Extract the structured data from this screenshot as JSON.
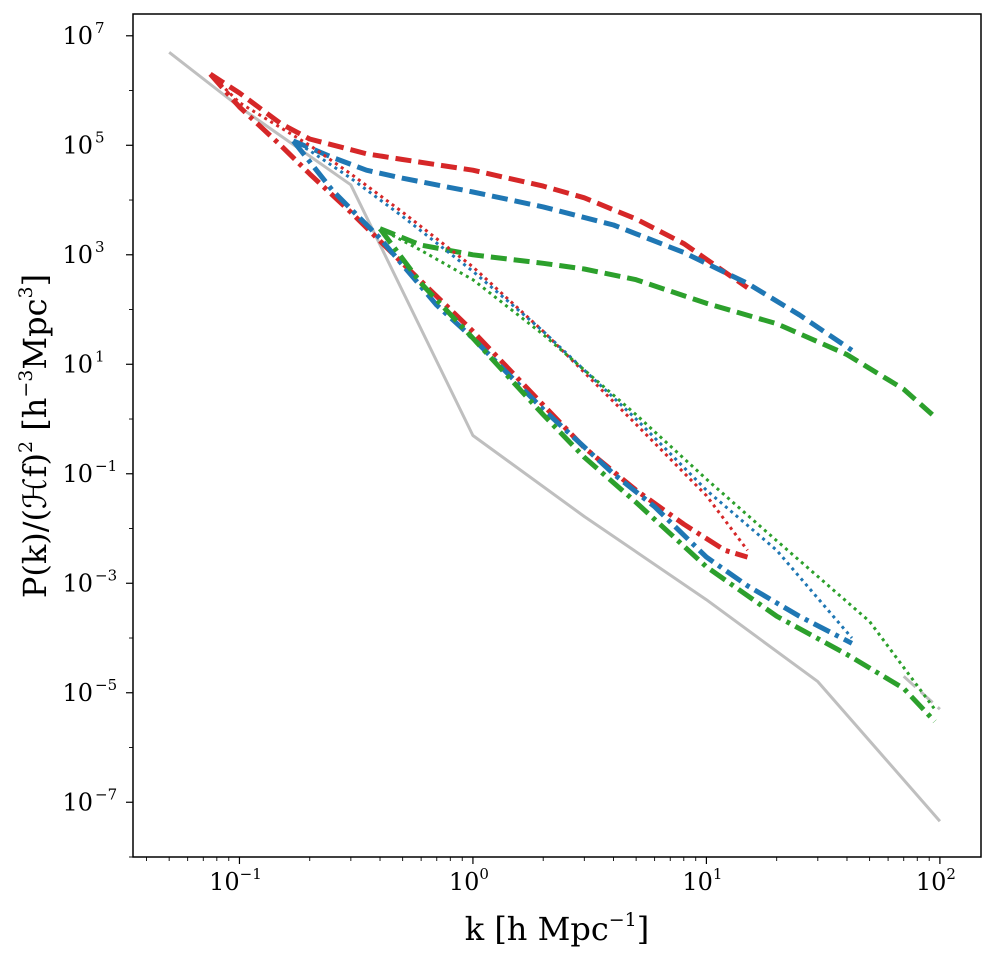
{
  "chart_data": {
    "type": "line",
    "xscale": "log",
    "yscale": "log",
    "xlim": [
      0.035,
      150
    ],
    "ylim": [
      1e-08,
      25000000.0
    ],
    "xticks": [
      {
        "value": 0.1,
        "base": "10",
        "exp": "−1"
      },
      {
        "value": 1,
        "base": "10",
        "exp": "0"
      },
      {
        "value": 10,
        "base": "10",
        "exp": "1"
      },
      {
        "value": 100,
        "base": "10",
        "exp": "2"
      }
    ],
    "yticks": [
      {
        "value": 1e-07,
        "base": "10",
        "exp": "−7"
      },
      {
        "value": 1e-05,
        "base": "10",
        "exp": "−5"
      },
      {
        "value": 0.001,
        "base": "10",
        "exp": "−3"
      },
      {
        "value": 0.1,
        "base": "10",
        "exp": "−1"
      },
      {
        "value": 10.0,
        "base": "10",
        "exp": "1"
      },
      {
        "value": 1000.0,
        "base": "10",
        "exp": "3"
      },
      {
        "value": 100000.0,
        "base": "10",
        "exp": "5"
      },
      {
        "value": 10000000.0,
        "base": "10",
        "exp": "7"
      }
    ],
    "xlabel": {
      "main": "k [h Mpc",
      "sup": "−1",
      "end": "]"
    },
    "ylabel": {
      "main": "P(k)/(ℋf)",
      "sup1": "2",
      "mid": " [h",
      "sup2": "−3",
      "mid2": "Mpc",
      "sup3": "3",
      "end": "]"
    },
    "series": [
      {
        "name": "linear-gray",
        "color": "#bfbfbf",
        "style": "solid",
        "width": 3,
        "x": [
          0.05,
          0.1,
          0.3,
          1,
          3,
          10,
          30,
          100
        ],
        "y": [
          5000000.0,
          500000.0,
          19000.0,
          0.5,
          0.0166,
          0.0005,
          1.6e-05,
          4.5e-08
        ]
      },
      {
        "name": "gray-dashed-tail",
        "color": "#bfbfbf",
        "style": "dashed",
        "width": 3,
        "x": [
          70,
          100
        ],
        "y": [
          2e-05,
          5e-06
        ]
      },
      {
        "name": "red-dashed",
        "color": "#d62728",
        "style": "dashed",
        "width": 5,
        "x": [
          0.075,
          0.1,
          0.15,
          0.2,
          0.35,
          0.5,
          1,
          2,
          3,
          5,
          8,
          15
        ],
        "y": [
          2000000.0,
          900000.0,
          250000.0,
          130000.0,
          70000.0,
          55000.0,
          35000.0,
          18000.0,
          11000.0,
          4500.0,
          1600.0,
          250
        ]
      },
      {
        "name": "blue-dashed",
        "color": "#1f77b4",
        "style": "dashed",
        "width": 5,
        "x": [
          0.17,
          0.25,
          0.35,
          0.5,
          1,
          2,
          4,
          8,
          15,
          25,
          42
        ],
        "y": [
          120000.0,
          60000.0,
          35000.0,
          25000.0,
          14000.0,
          7500.0,
          3500.0,
          1100.0,
          300,
          80,
          18
        ]
      },
      {
        "name": "green-dashed",
        "color": "#2ca02c",
        "style": "dashed",
        "width": 5,
        "x": [
          0.4,
          0.6,
          1,
          2,
          3,
          5,
          10,
          20,
          40,
          70,
          95
        ],
        "y": [
          3000.0,
          1500.0,
          1000.0,
          700,
          550,
          350,
          130,
          55,
          15,
          3.5,
          1.1
        ]
      },
      {
        "name": "red-dotted",
        "color": "#d62728",
        "style": "dotted",
        "width": 3,
        "x": [
          0.075,
          0.1,
          0.2,
          0.3,
          0.5,
          1,
          2,
          5,
          10,
          15
        ],
        "y": [
          2000000.0,
          600000.0,
          100000.0,
          30000.0,
          6000.0,
          600,
          40,
          0.8,
          0.04,
          0.004
        ]
      },
      {
        "name": "blue-dotted",
        "color": "#1f77b4",
        "style": "dotted",
        "width": 3,
        "x": [
          0.17,
          0.2,
          0.3,
          0.5,
          1,
          2,
          5,
          10,
          20,
          42
        ],
        "y": [
          120000.0,
          80000.0,
          25000.0,
          5000.0,
          500,
          40,
          1,
          0.05,
          0.004,
          0.0001
        ]
      },
      {
        "name": "green-dotted",
        "color": "#2ca02c",
        "style": "dotted",
        "width": 3,
        "x": [
          0.4,
          0.6,
          1,
          2,
          5,
          10,
          20,
          50,
          95
        ],
        "y": [
          3000.0,
          1200.0,
          350,
          35,
          1.2,
          0.08,
          0.006,
          0.0002,
          5e-06
        ]
      },
      {
        "name": "red-dashdot",
        "color": "#d62728",
        "style": "dashdot",
        "width": 5,
        "x": [
          0.075,
          0.1,
          0.15,
          0.2,
          0.3,
          0.5,
          1,
          2,
          3,
          5,
          8,
          12,
          15
        ],
        "y": [
          2000000.0,
          500000.0,
          100000.0,
          30000.0,
          6000.0,
          700,
          40,
          1.8,
          0.3,
          0.05,
          0.012,
          0.004,
          0.003
        ]
      },
      {
        "name": "blue-dashdot",
        "color": "#1f77b4",
        "style": "dashdot",
        "width": 5,
        "x": [
          0.17,
          0.25,
          0.4,
          0.7,
          1,
          2,
          4,
          6,
          10,
          15,
          25,
          42
        ],
        "y": [
          120000.0,
          15000.0,
          2000.0,
          120,
          30,
          1.5,
          0.1,
          0.025,
          0.003,
          0.0009,
          0.00025,
          8e-05
        ]
      },
      {
        "name": "green-dashdot",
        "color": "#2ca02c",
        "style": "dashdot",
        "width": 5,
        "x": [
          0.4,
          0.6,
          1,
          2,
          3,
          5,
          10,
          20,
          40,
          70,
          95
        ],
        "y": [
          3000.0,
          300,
          30,
          1.2,
          0.2,
          0.03,
          0.002,
          0.00025,
          5e-05,
          1.2e-05,
          3e-06
        ]
      }
    ]
  }
}
